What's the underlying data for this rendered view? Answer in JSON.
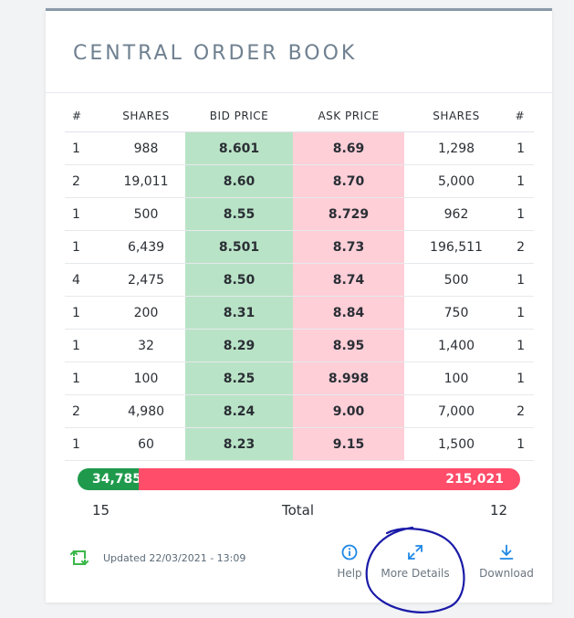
{
  "title": "CENTRAL ORDER BOOK",
  "columns": [
    "#",
    "SHARES",
    "BID PRICE",
    "ASK PRICE",
    "SHARES",
    "#"
  ],
  "rows": [
    {
      "bid_count": "1",
      "bid_shares": "988",
      "bid_price": "8.601",
      "ask_price": "8.69",
      "ask_shares": "1,298",
      "ask_count": "1"
    },
    {
      "bid_count": "2",
      "bid_shares": "19,011",
      "bid_price": "8.60",
      "ask_price": "8.70",
      "ask_shares": "5,000",
      "ask_count": "1"
    },
    {
      "bid_count": "1",
      "bid_shares": "500",
      "bid_price": "8.55",
      "ask_price": "8.729",
      "ask_shares": "962",
      "ask_count": "1"
    },
    {
      "bid_count": "1",
      "bid_shares": "6,439",
      "bid_price": "8.501",
      "ask_price": "8.73",
      "ask_shares": "196,511",
      "ask_count": "2"
    },
    {
      "bid_count": "4",
      "bid_shares": "2,475",
      "bid_price": "8.50",
      "ask_price": "8.74",
      "ask_shares": "500",
      "ask_count": "1"
    },
    {
      "bid_count": "1",
      "bid_shares": "200",
      "bid_price": "8.31",
      "ask_price": "8.84",
      "ask_shares": "750",
      "ask_count": "1"
    },
    {
      "bid_count": "1",
      "bid_shares": "32",
      "bid_price": "8.29",
      "ask_price": "8.95",
      "ask_shares": "1,400",
      "ask_count": "1"
    },
    {
      "bid_count": "1",
      "bid_shares": "100",
      "bid_price": "8.25",
      "ask_price": "8.998",
      "ask_shares": "100",
      "ask_count": "1"
    },
    {
      "bid_count": "2",
      "bid_shares": "4,980",
      "bid_price": "8.24",
      "ask_price": "9.00",
      "ask_shares": "7,000",
      "ask_count": "2"
    },
    {
      "bid_count": "1",
      "bid_shares": "60",
      "bid_price": "8.23",
      "ask_price": "9.15",
      "ask_shares": "1,500",
      "ask_count": "1"
    }
  ],
  "totals": {
    "bid_volume": "34,785",
    "ask_volume": "215,021",
    "bid_volume_share": 0.139,
    "bid_orders": "15",
    "ask_orders": "12",
    "label": "Total"
  },
  "footer": {
    "updated": "Updated 22/03/2021 - 13:09",
    "refresh_icon": "refresh-icon",
    "actions": [
      {
        "label": "Help",
        "icon": "info-icon"
      },
      {
        "label": "More Details",
        "icon": "expand-icon"
      },
      {
        "label": "Download",
        "icon": "download-icon"
      }
    ]
  },
  "colors": {
    "bid_cell": "#b9e3c6",
    "ask_cell": "#ffcfd8",
    "bid_bar": "#1f9a4c",
    "ask_bar": "#ff4d6a",
    "accent": "#1e88e5",
    "refresh": "#3ab84a",
    "annotation": "#1a1aa8"
  }
}
